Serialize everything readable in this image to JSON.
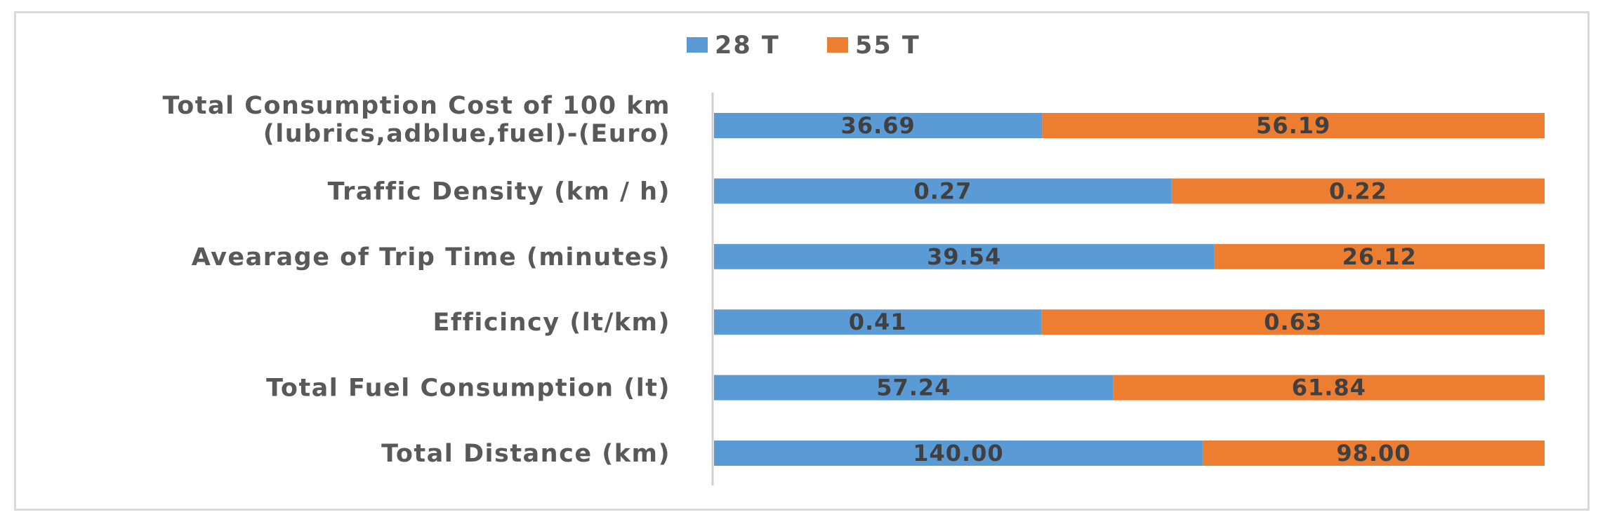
{
  "chart_data": {
    "type": "bar",
    "orientation": "horizontal",
    "stacking": "percent",
    "legend_position": "top",
    "grid": false,
    "categories": [
      [
        "Total Consumption Cost of 100 km",
        "(lubrics,adblue,fuel)-(Euro)"
      ],
      [
        "Traffic Density (km / h)"
      ],
      [
        "Avearage of Trip Time (minutes)"
      ],
      [
        "Efficincy (lt/km)"
      ],
      [
        "Total Fuel Consumption (lt)"
      ],
      [
        "Total Distance (km)"
      ]
    ],
    "series": [
      {
        "name": "28 T",
        "color": "#5b9bd5",
        "values": [
          36.69,
          0.27,
          39.54,
          0.41,
          57.24,
          140.0
        ],
        "labels": [
          "36.69",
          "0.27",
          "39.54",
          "0.41",
          "57.24",
          "140.00"
        ]
      },
      {
        "name": "55 T",
        "color": "#ed7d31",
        "values": [
          56.19,
          0.22,
          26.12,
          0.63,
          61.84,
          98.0
        ],
        "labels": [
          "56.19",
          "0.22",
          "26.12",
          "0.63",
          "61.84",
          "98.00"
        ]
      }
    ]
  }
}
